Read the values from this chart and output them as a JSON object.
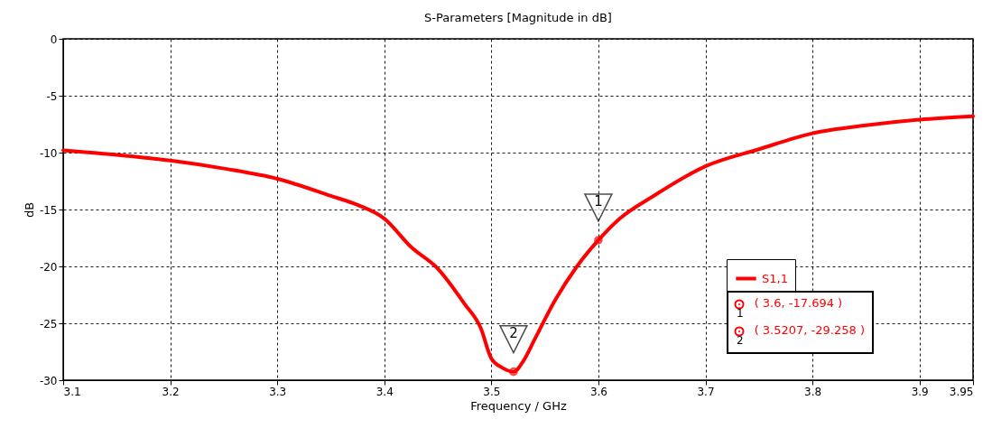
{
  "chart_data": {
    "type": "line",
    "title": "S-Parameters [Magnitude in dB]",
    "xlabel": "Frequency / GHz",
    "ylabel": "dB",
    "xlim": [
      3.1,
      3.95
    ],
    "xticks": [
      3.1,
      3.2,
      3.3,
      3.4,
      3.5,
      3.6,
      3.7,
      3.8,
      3.9,
      3.95
    ],
    "ylim": [
      -30,
      0
    ],
    "yticks": [
      0,
      -5,
      -10,
      -15,
      -20,
      -25,
      -30
    ],
    "grid": true,
    "legend": "bottom right",
    "line_style": "solid",
    "marker": "none",
    "series": [
      {
        "name": "S1,1",
        "color": "#ff0000",
        "x": [
          3.1,
          3.15,
          3.2,
          3.25,
          3.3,
          3.35,
          3.375,
          3.4,
          3.425,
          3.45,
          3.475,
          3.49,
          3.5,
          3.51,
          3.5207,
          3.53,
          3.54,
          3.56,
          3.58,
          3.6,
          3.62,
          3.65,
          3.7,
          3.75,
          3.8,
          3.85,
          3.9,
          3.95
        ],
        "values": [
          -9.8,
          -10.2,
          -10.7,
          -11.4,
          -12.3,
          -13.8,
          -14.6,
          -15.8,
          -18.3,
          -20.2,
          -23.3,
          -25.4,
          -28.1,
          -28.9,
          -29.258,
          -28.3,
          -26.5,
          -22.9,
          -20.0,
          -17.694,
          -15.8,
          -13.9,
          -11.2,
          -9.7,
          -8.3,
          -7.6,
          -7.1,
          -6.8
        ]
      },
      {
        "type": "scatter",
        "marker": "circle",
        "color": "#ff0000",
        "x": [
          3.6,
          3.5207
        ],
        "values": [
          -17.694,
          -29.258
        ]
      }
    ],
    "annotations": [
      {
        "text": "1",
        "x": 3.6,
        "y": -17.694
      },
      {
        "text": "2",
        "x": 3.5207,
        "y": -29.258
      },
      "( 3.6, -17.694 )",
      "( 3.5207, -29.258 )"
    ]
  }
}
